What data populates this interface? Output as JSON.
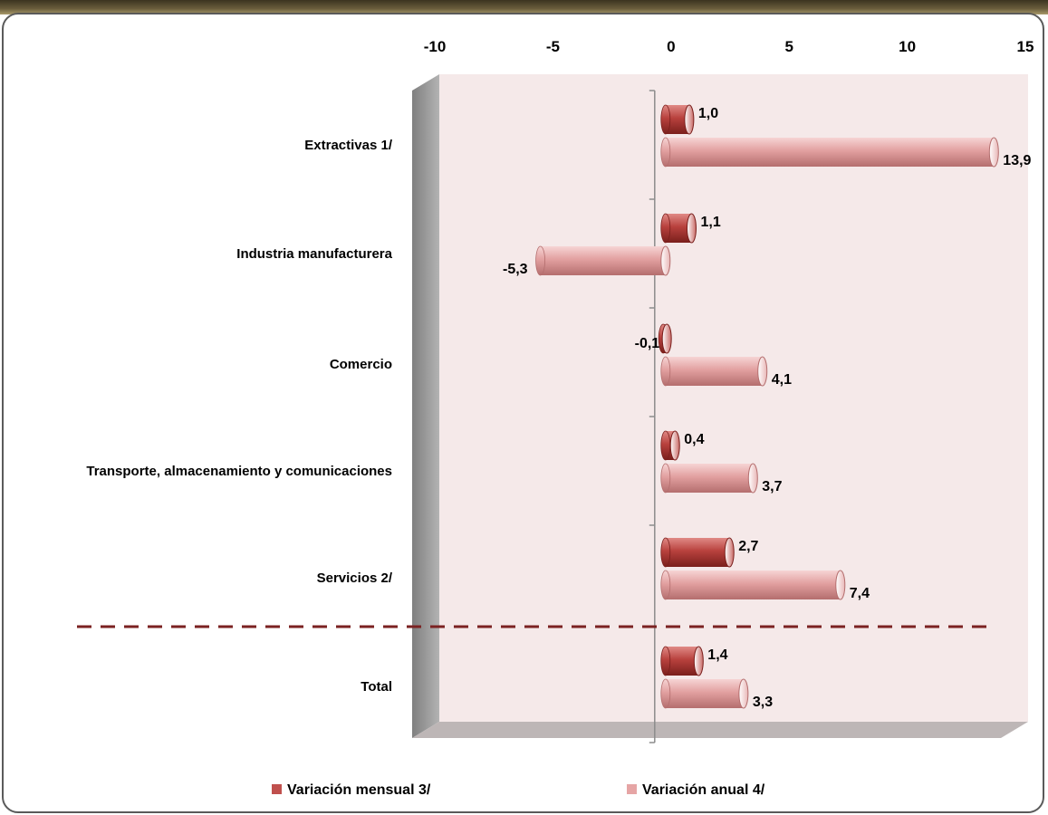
{
  "chart_data": {
    "type": "bar",
    "orientation": "horizontal",
    "categories": [
      "Extractivas 1/",
      "Industria manufacturera",
      "Comercio",
      "Transporte, almacenamiento y comunicaciones",
      "Servicios 2/",
      "Total"
    ],
    "series": [
      {
        "name": "Variación mensual 3/",
        "color": "#c0504d",
        "values": [
          1.0,
          1.1,
          -0.1,
          0.4,
          2.7,
          1.4
        ],
        "labels": [
          "1,0",
          "1,1",
          "-0,1",
          "0,4",
          "2,7",
          "1,4"
        ]
      },
      {
        "name": "Variación anual 4/",
        "color": "#e6a5a5",
        "values": [
          13.9,
          -5.3,
          4.1,
          3.7,
          7.4,
          3.3
        ],
        "labels": [
          "13,9",
          "-5,3",
          "4,1",
          "3,7",
          "7,4",
          "3,3"
        ]
      }
    ],
    "xlim": [
      -10,
      15
    ],
    "xticks": [
      -10,
      -5,
      0,
      5,
      10,
      15
    ],
    "xtick_labels": [
      "-10",
      "-5",
      "0",
      "5",
      "10",
      "15"
    ],
    "x_axis_position": "top",
    "legend_position": "bottom",
    "separator_before": "Total",
    "colors": {
      "plot_background": "#f5e9e9",
      "side_wall": "#9b9b9b",
      "floor": "#bdb6b6",
      "separator_line": "#7b2222"
    }
  }
}
